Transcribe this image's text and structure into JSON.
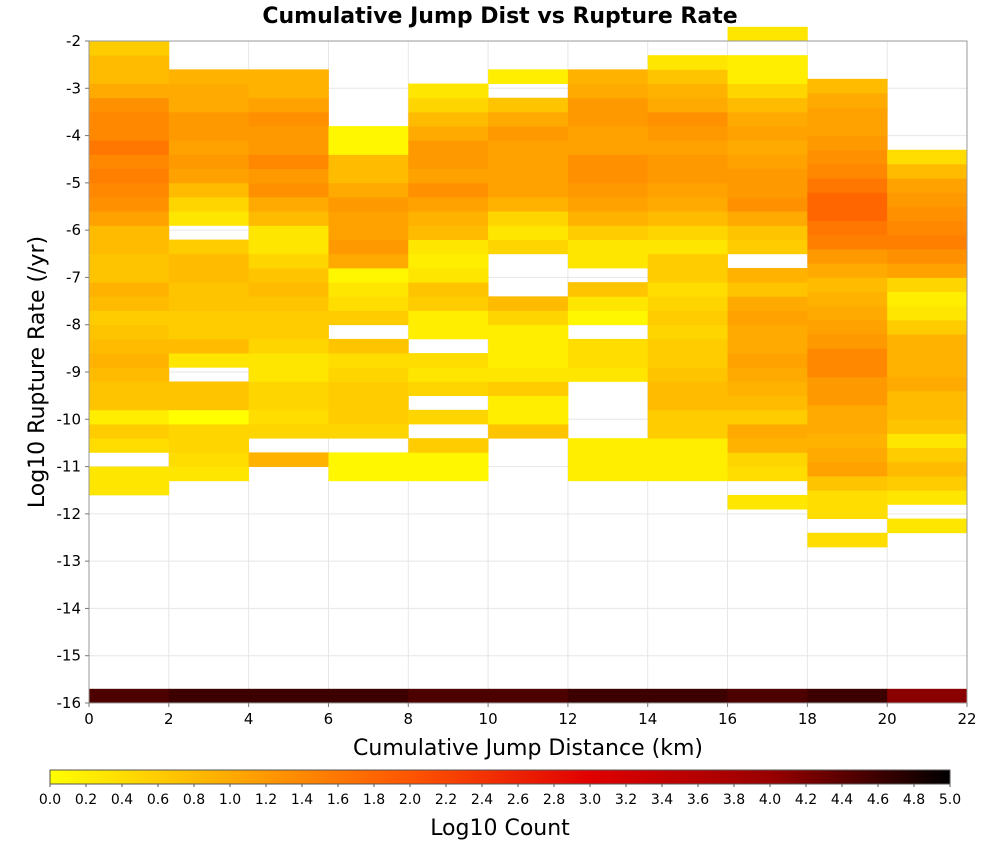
{
  "chart_data": {
    "type": "heatmap",
    "title": "Cumulative Jump Dist vs Rupture Rate",
    "xlabel": "Cumulative Jump Distance (km)",
    "ylabel": "Log10 Rupture Rate (/yr)",
    "colorbar_label": "Log10 Count",
    "xlim": [
      0,
      22
    ],
    "ylim": [
      -16,
      -2
    ],
    "x_ticks": [
      "0",
      "2",
      "4",
      "6",
      "8",
      "10",
      "12",
      "14",
      "16",
      "18",
      "20",
      "22"
    ],
    "y_ticks": [
      "-2",
      "-3",
      "-4",
      "-5",
      "-6",
      "-7",
      "-8",
      "-9",
      "-10",
      "-11",
      "-12",
      "-13",
      "-14",
      "-15",
      "-16"
    ],
    "colorbar_ticks": [
      "0.0",
      "0.2",
      "0.4",
      "0.6",
      "0.8",
      "1.0",
      "1.2",
      "1.4",
      "1.6",
      "1.8",
      "2.0",
      "2.2",
      "2.4",
      "2.6",
      "2.8",
      "3.0",
      "3.2",
      "3.4",
      "3.6",
      "3.8",
      "4.0",
      "4.2",
      "4.4",
      "4.6",
      "4.8",
      "5.0"
    ],
    "colorbar_range": [
      0,
      5
    ],
    "colormap": [
      "#ffff00",
      "#ffaa00",
      "#ff5500",
      "#e00000",
      "#990000",
      "#000000"
    ],
    "grid": true,
    "x_bins": [
      0,
      2,
      4,
      6,
      8,
      10,
      12,
      14,
      16,
      18,
      20
    ],
    "x_bin_width": 2,
    "y_bin_height": 0.3,
    "bottom_row": {
      "y_start": -16,
      "values": [
        4.5,
        4.6,
        4.6,
        4.6,
        4.5,
        4.5,
        4.6,
        4.6,
        4.5,
        4.6,
        4.1
      ]
    },
    "columns": [
      {
        "x": 0,
        "y_start": -11.6,
        "values": [
          0.3,
          0.3,
          null,
          0.4,
          0.6,
          0.2,
          0.7,
          0.7,
          0.8,
          0.9,
          0.8,
          0.7,
          0.6,
          0.8,
          0.9,
          0.7,
          0.7,
          0.8,
          0.8,
          1.1,
          1.3,
          1.4,
          1.5,
          1.4,
          1.6,
          1.4,
          1.4,
          1.3,
          1.0,
          0.8,
          0.8,
          0.6
        ]
      },
      {
        "x": 2,
        "y_start": -11.3,
        "values": [
          0.3,
          0.4,
          0.5,
          0.5,
          0.0,
          0.7,
          0.7,
          null,
          0.3,
          0.8,
          0.6,
          0.6,
          0.7,
          0.7,
          0.8,
          0.8,
          0.6,
          null,
          0.3,
          0.5,
          0.8,
          1.1,
          1.2,
          1.1,
          1.2,
          1.2,
          1.0,
          1.0,
          0.9
        ]
      },
      {
        "x": 4,
        "y_start": -11.0,
        "values": [
          0.9,
          null,
          0.5,
          0.4,
          0.5,
          0.5,
          0.3,
          0.3,
          0.5,
          0.6,
          0.6,
          0.7,
          0.8,
          0.7,
          0.5,
          0.3,
          0.3,
          0.8,
          1.0,
          1.3,
          1.2,
          1.4,
          1.2,
          1.2,
          1.3,
          1.1,
          0.9,
          0.9
        ]
      },
      {
        "x": 6,
        "y_start": -11.3,
        "values": [
          0.1,
          0.1,
          null,
          0.5,
          0.6,
          0.6,
          0.6,
          0.5,
          0.4,
          0.7,
          null,
          0.6,
          0.4,
          0.3,
          0.1,
          1.0,
          1.2,
          1.1,
          1.1,
          1.2,
          1.0,
          0.8,
          0.8,
          0.1,
          0.1
        ]
      },
      {
        "x": 8,
        "y_start": -11.3,
        "values": [
          0.1,
          0.1,
          0.6,
          null,
          0.5,
          null,
          0.5,
          0.3,
          0.4,
          null,
          0.2,
          0.2,
          0.6,
          0.7,
          0.3,
          0.2,
          0.3,
          0.8,
          0.9,
          1.1,
          1.3,
          1.1,
          1.2,
          1.2,
          1.0,
          0.8,
          0.5,
          0.3
        ]
      },
      {
        "x": 10,
        "y_start": -10.4,
        "values": [
          0.7,
          0.2,
          0.2,
          0.6,
          0.3,
          0.2,
          0.2,
          0.2,
          0.5,
          0.8,
          null,
          null,
          null,
          0.5,
          0.3,
          0.5,
          0.9,
          1.1,
          1.1,
          1.1,
          1.1,
          1.2,
          1.0,
          0.7,
          null,
          0.2
        ]
      },
      {
        "x": 12,
        "y_start": -11.3,
        "values": [
          0.2,
          0.2,
          0.2,
          null,
          null,
          null,
          null,
          0.3,
          0.4,
          0.4,
          null,
          0.1,
          0.3,
          0.7,
          null,
          0.3,
          0.3,
          0.6,
          0.9,
          1.1,
          1.2,
          1.3,
          1.3,
          1.1,
          1.1,
          1.2,
          1.2,
          1.0,
          0.9
        ]
      },
      {
        "x": 14,
        "y_start": -11.3,
        "values": [
          0.2,
          0.2,
          0.2,
          0.6,
          0.6,
          0.8,
          0.8,
          0.7,
          0.6,
          0.6,
          0.5,
          0.6,
          0.5,
          0.4,
          0.6,
          0.6,
          0.3,
          0.5,
          0.8,
          1.0,
          1.1,
          1.2,
          1.2,
          1.1,
          1.2,
          1.3,
          1.0,
          0.9,
          0.7,
          0.3
        ]
      },
      {
        "x": 16,
        "y_start": -11.9,
        "values": [
          0.3,
          null,
          0.4,
          0.5,
          0.9,
          1.0,
          0.6,
          0.8,
          0.9,
          1.0,
          1.1,
          1.0,
          1.0,
          1.1,
          1.0,
          0.7,
          0.9,
          null,
          0.6,
          0.7,
          1.0,
          1.3,
          1.2,
          1.2,
          1.1,
          1.0,
          1.1,
          1.0,
          0.8,
          0.5,
          0.2,
          0.2,
          null,
          0.3
        ]
      },
      {
        "x": 18,
        "y_start": -12.7,
        "values": [
          0.4,
          null,
          0.4,
          0.4,
          0.7,
          1.1,
          1.0,
          0.9,
          1.0,
          1.0,
          1.2,
          1.2,
          1.4,
          1.4,
          1.2,
          1.1,
          1.0,
          0.9,
          0.8,
          1.0,
          1.2,
          1.5,
          1.6,
          1.8,
          1.8,
          1.6,
          1.4,
          1.3,
          1.2,
          1.1,
          1.1,
          1.0,
          0.8
        ]
      },
      {
        "x": 20,
        "y_start": -12.4,
        "values": [
          0.3,
          null,
          0.3,
          0.6,
          0.8,
          0.6,
          0.3,
          0.7,
          0.8,
          0.8,
          1.0,
          0.9,
          0.9,
          0.9,
          0.6,
          0.3,
          0.2,
          0.5,
          1.1,
          1.3,
          1.5,
          1.4,
          1.3,
          1.2,
          1.1,
          0.8,
          0.4
        ]
      }
    ]
  }
}
